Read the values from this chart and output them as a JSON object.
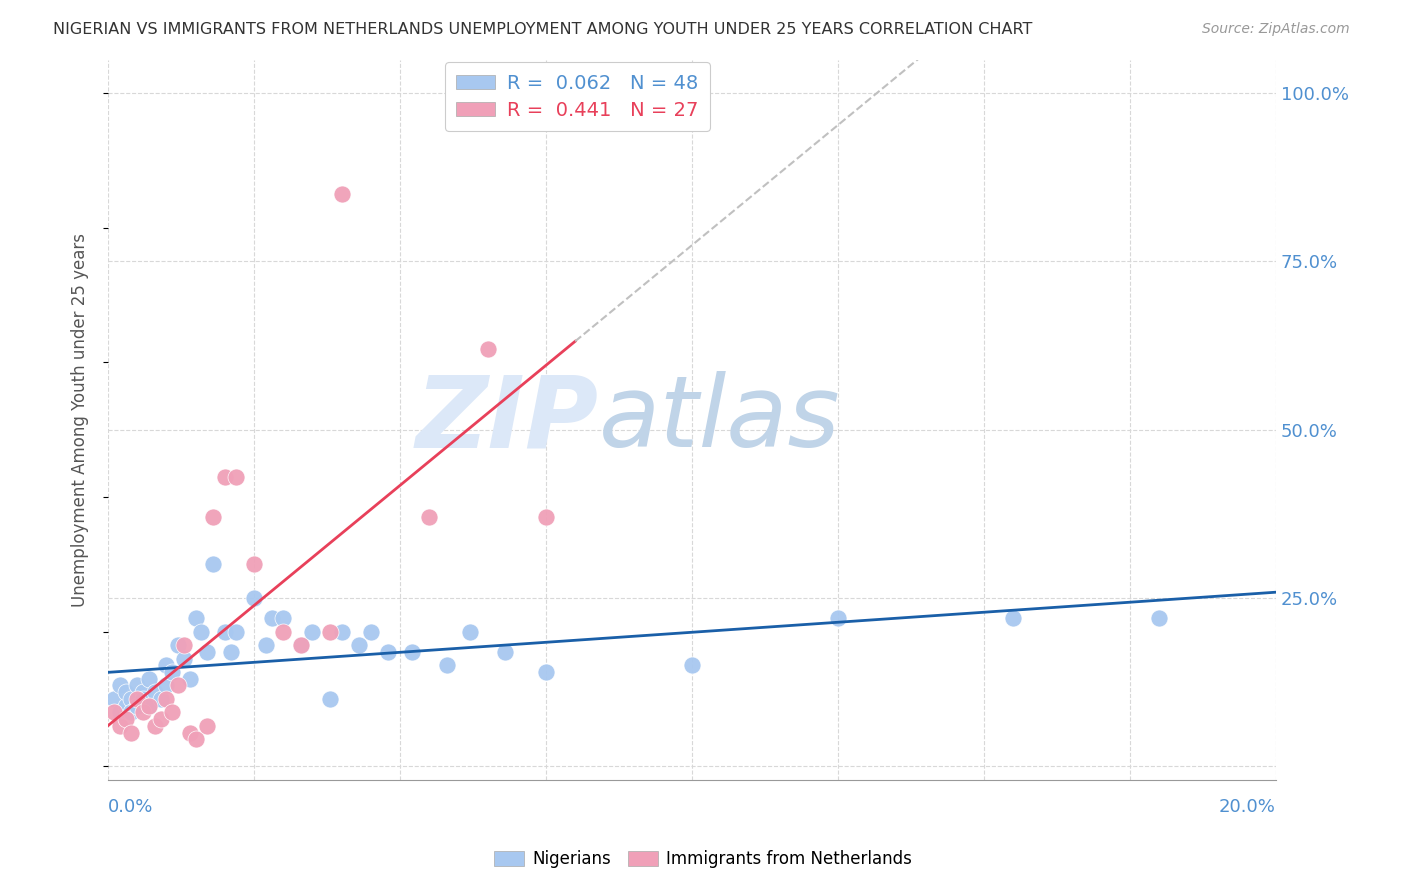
{
  "title": "NIGERIAN VS IMMIGRANTS FROM NETHERLANDS UNEMPLOYMENT AMONG YOUTH UNDER 25 YEARS CORRELATION CHART",
  "source": "Source: ZipAtlas.com",
  "ylabel": "Unemployment Among Youth under 25 years",
  "xlim": [
    0.0,
    0.2
  ],
  "ylim": [
    -0.02,
    1.05
  ],
  "yticks": [
    0.0,
    0.25,
    0.5,
    0.75,
    1.0
  ],
  "ytick_labels": [
    "",
    "25.0%",
    "50.0%",
    "75.0%",
    "100.0%"
  ],
  "nigerians": {
    "color": "#a8c8f0",
    "trend_color": "#1a5fa8",
    "R": 0.062,
    "N": 48,
    "x": [
      0.001,
      0.002,
      0.002,
      0.003,
      0.003,
      0.004,
      0.004,
      0.005,
      0.005,
      0.006,
      0.006,
      0.007,
      0.007,
      0.008,
      0.009,
      0.01,
      0.01,
      0.011,
      0.012,
      0.013,
      0.014,
      0.015,
      0.016,
      0.017,
      0.018,
      0.02,
      0.021,
      0.022,
      0.025,
      0.027,
      0.028,
      0.03,
      0.033,
      0.035,
      0.038,
      0.04,
      0.043,
      0.045,
      0.048,
      0.052,
      0.058,
      0.062,
      0.068,
      0.075,
      0.1,
      0.125,
      0.155,
      0.18
    ],
    "y": [
      0.1,
      0.08,
      0.12,
      0.09,
      0.11,
      0.1,
      0.08,
      0.12,
      0.09,
      0.11,
      0.1,
      0.13,
      0.09,
      0.11,
      0.1,
      0.12,
      0.15,
      0.14,
      0.18,
      0.16,
      0.13,
      0.22,
      0.2,
      0.17,
      0.3,
      0.2,
      0.17,
      0.2,
      0.25,
      0.18,
      0.22,
      0.22,
      0.18,
      0.2,
      0.1,
      0.2,
      0.18,
      0.2,
      0.17,
      0.17,
      0.15,
      0.2,
      0.17,
      0.14,
      0.15,
      0.22,
      0.22,
      0.22
    ]
  },
  "netherlands": {
    "color": "#f0a0b8",
    "trend_color": "#e8405a",
    "R": 0.441,
    "N": 27,
    "x": [
      0.001,
      0.002,
      0.003,
      0.004,
      0.005,
      0.006,
      0.007,
      0.008,
      0.009,
      0.01,
      0.011,
      0.012,
      0.013,
      0.014,
      0.015,
      0.017,
      0.018,
      0.02,
      0.022,
      0.025,
      0.03,
      0.033,
      0.038,
      0.04,
      0.055,
      0.065,
      0.075
    ],
    "y": [
      0.08,
      0.06,
      0.07,
      0.05,
      0.1,
      0.08,
      0.09,
      0.06,
      0.07,
      0.1,
      0.08,
      0.12,
      0.18,
      0.05,
      0.04,
      0.06,
      0.37,
      0.43,
      0.43,
      0.3,
      0.2,
      0.18,
      0.2,
      0.85,
      0.37,
      0.62,
      0.37
    ]
  },
  "background_color": "#ffffff",
  "grid_color": "#d8d8d8",
  "watermark_color": "#dce8f8",
  "trend_dash_start": 0.08
}
